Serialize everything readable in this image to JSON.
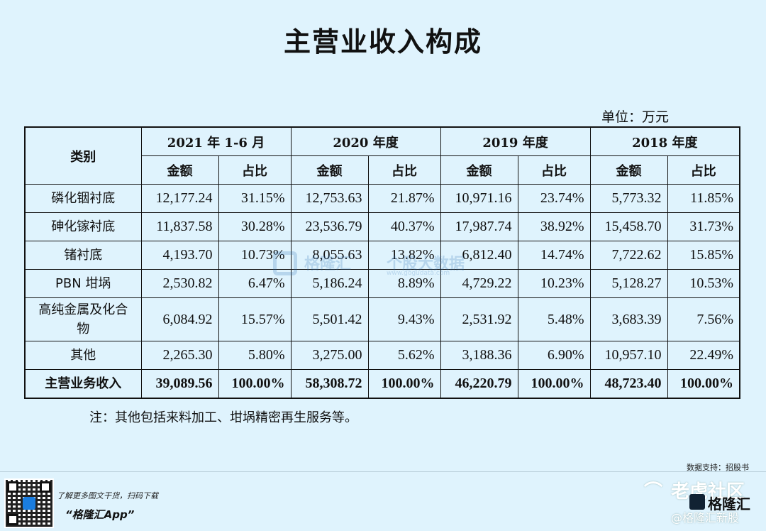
{
  "title": "主营业收入构成",
  "unit": "单位：万元",
  "table": {
    "category_header": "类别",
    "periods": [
      "2021 年 1-6 月",
      "2020 年度",
      "2019 年度",
      "2018 年度"
    ],
    "sub_headers": {
      "amount": "金额",
      "ratio": "占比"
    },
    "rows": [
      {
        "category": "磷化铟衬底",
        "values": [
          "12,177.24",
          "31.15%",
          "12,753.63",
          "21.87%",
          "10,971.16",
          "23.74%",
          "5,773.32",
          "11.85%"
        ]
      },
      {
        "category": "砷化镓衬底",
        "values": [
          "11,837.58",
          "30.28%",
          "23,536.79",
          "40.37%",
          "17,987.74",
          "38.92%",
          "15,458.70",
          "31.73%"
        ]
      },
      {
        "category": "锗衬底",
        "values": [
          "4,193.70",
          "10.73%",
          "8,055.63",
          "13.82%",
          "6,812.40",
          "14.74%",
          "7,722.62",
          "15.85%"
        ]
      },
      {
        "category": "PBN 坩埚",
        "values": [
          "2,530.82",
          "6.47%",
          "5,186.24",
          "8.89%",
          "4,729.22",
          "10.23%",
          "5,128.27",
          "10.53%"
        ]
      },
      {
        "category": "高纯金属及化合物",
        "values": [
          "6,084.92",
          "15.57%",
          "5,501.42",
          "9.43%",
          "2,531.92",
          "5.48%",
          "3,683.39",
          "7.56%"
        ]
      },
      {
        "category": "其他",
        "values": [
          "2,265.30",
          "5.80%",
          "3,275.00",
          "5.62%",
          "3,188.36",
          "6.90%",
          "10,957.10",
          "22.49%"
        ]
      }
    ],
    "total": {
      "category": "主营业务收入",
      "values": [
        "39,089.56",
        "100.00%",
        "58,308.72",
        "100.00%",
        "46,220.79",
        "100.00%",
        "48,723.40",
        "100.00%"
      ]
    }
  },
  "note": "注：其他包括来料加工、坩埚精密再生服务等。",
  "watermark": {
    "brand": "格隆汇",
    "sub_brand": "个股大数据",
    "url": "www.gogudata.com"
  },
  "source": "数据支持：招股书",
  "footer": {
    "promo_line": "了解更多图文干货，扫码下载",
    "app_name": "“格隆汇App”",
    "tiger_brand": "老虎社区",
    "brand_logo_text": "格隆汇",
    "handle": "@格隆汇新股"
  }
}
